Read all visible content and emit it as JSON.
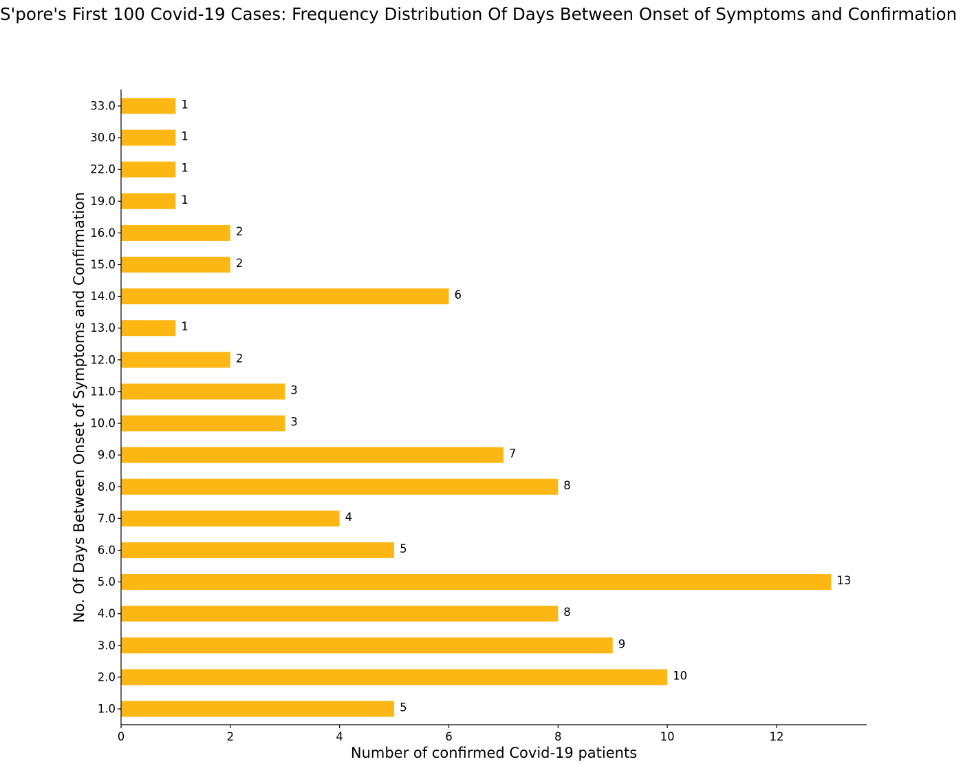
{
  "chart_data": {
    "type": "bar",
    "orientation": "horizontal",
    "title": "S'pore's First 100 Covid-19 Cases: Frequency Distribution Of Days Between Onset of Symptoms and Confirmation",
    "xlabel": "Number of confirmed Covid-19 patients",
    "ylabel": "No. Of Days Between Onset of Symptoms and Confirmation",
    "categories": [
      "1.0",
      "2.0",
      "3.0",
      "4.0",
      "5.0",
      "6.0",
      "7.0",
      "8.0",
      "9.0",
      "10.0",
      "11.0",
      "12.0",
      "13.0",
      "14.0",
      "15.0",
      "16.0",
      "19.0",
      "22.0",
      "30.0",
      "33.0"
    ],
    "values": [
      5,
      10,
      9,
      8,
      13,
      5,
      4,
      8,
      7,
      3,
      3,
      2,
      1,
      6,
      2,
      2,
      1,
      1,
      1,
      1
    ],
    "xlim": [
      0,
      13.65
    ],
    "xticks": [
      0,
      2,
      4,
      6,
      8,
      10,
      12
    ],
    "bar_color": "#FDB714",
    "grid": false,
    "legend": "none"
  }
}
